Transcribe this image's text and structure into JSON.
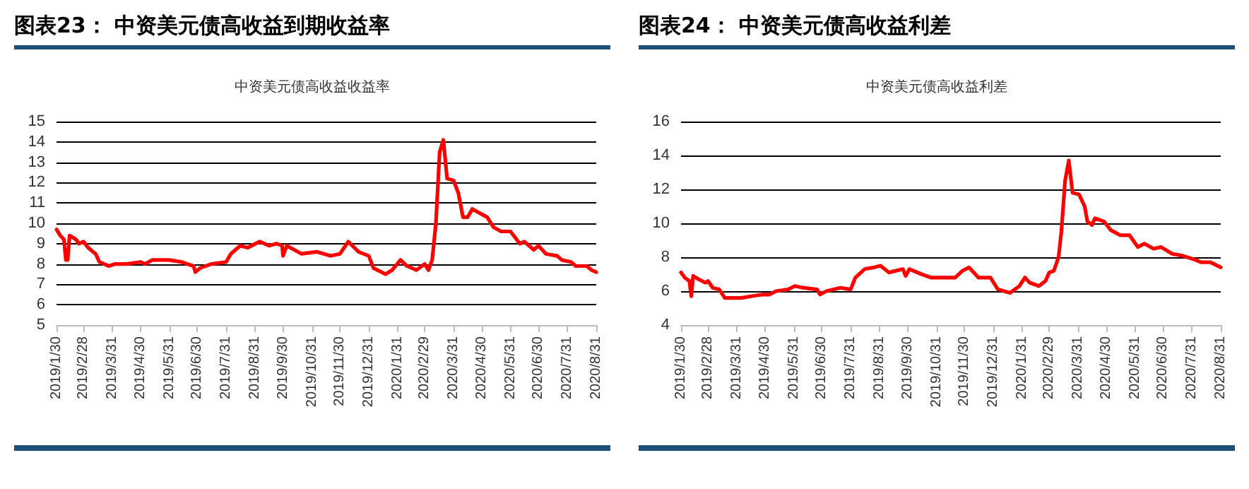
{
  "chart_data": [
    {
      "type": "line",
      "title": "图表23： 中资美元债高收益到期收益率",
      "subtitle": "中资美元债高收益收益率",
      "grid": "y",
      "marker": "none",
      "line_style": "solid",
      "ylim": [
        5,
        15
      ],
      "yticks": [
        5,
        6,
        7,
        8,
        9,
        10,
        11,
        12,
        13,
        14,
        15
      ],
      "xlim": [
        "2019-01-30",
        "2020-08-31"
      ],
      "xticks": [
        {
          "value": "2019-01-30",
          "label": "2019/1/30"
        },
        {
          "value": "2019-02-28",
          "label": "2019/2/28"
        },
        {
          "value": "2019-03-31",
          "label": "2019/3/31"
        },
        {
          "value": "2019-04-30",
          "label": "2019/4/30"
        },
        {
          "value": "2019-05-31",
          "label": "2019/5/31"
        },
        {
          "value": "2019-06-30",
          "label": "2019/6/30"
        },
        {
          "value": "2019-07-31",
          "label": "2019/7/31"
        },
        {
          "value": "2019-08-31",
          "label": "2019/8/31"
        },
        {
          "value": "2019-09-30",
          "label": "2019/9/30"
        },
        {
          "value": "2019-10-31",
          "label": "2019/10/31"
        },
        {
          "value": "2019-11-30",
          "label": "2019/11/30"
        },
        {
          "value": "2019-12-31",
          "label": "2019/12/31"
        },
        {
          "value": "2020-01-31",
          "label": "2020/1/31"
        },
        {
          "value": "2020-02-29",
          "label": "2020/2/29"
        },
        {
          "value": "2020-03-31",
          "label": "2020/3/31"
        },
        {
          "value": "2020-04-30",
          "label": "2020/4/30"
        },
        {
          "value": "2020-05-31",
          "label": "2020/5/31"
        },
        {
          "value": "2020-06-30",
          "label": "2020/6/30"
        },
        {
          "value": "2020-07-31",
          "label": "2020/7/31"
        },
        {
          "value": "2020-08-31",
          "label": "2020/8/31"
        }
      ],
      "series": [
        {
          "color": "#ff0000",
          "x": [
            "2019-01-30",
            "2019-02-03",
            "2019-02-07",
            "2019-02-09",
            "2019-02-11",
            "2019-02-13",
            "2019-02-20",
            "2019-02-23",
            "2019-02-28",
            "2019-03-05",
            "2019-03-10",
            "2019-03-13",
            "2019-03-17",
            "2019-03-27",
            "2019-04-03",
            "2019-04-15",
            "2019-04-30",
            "2019-05-05",
            "2019-05-13",
            "2019-05-31",
            "2019-06-13",
            "2019-06-26",
            "2019-06-28",
            "2019-07-03",
            "2019-07-15",
            "2019-07-31",
            "2019-08-05",
            "2019-08-15",
            "2019-08-23",
            "2019-09-05",
            "2019-09-15",
            "2019-09-23",
            "2019-09-29",
            "2019-09-30",
            "2019-10-04",
            "2019-10-20",
            "2019-11-05",
            "2019-11-20",
            "2019-11-30",
            "2019-12-09",
            "2019-12-20",
            "2019-12-31",
            "2020-01-05",
            "2020-01-18",
            "2020-01-25",
            "2020-02-03",
            "2020-02-10",
            "2020-02-20",
            "2020-02-29",
            "2020-03-04",
            "2020-03-08",
            "2020-03-12",
            "2020-03-16",
            "2020-03-20",
            "2020-03-24",
            "2020-03-31",
            "2020-04-05",
            "2020-04-10",
            "2020-04-15",
            "2020-04-20",
            "2020-05-06",
            "2020-05-13",
            "2020-05-21",
            "2020-05-31",
            "2020-06-10",
            "2020-06-15",
            "2020-06-25",
            "2020-06-30",
            "2020-07-08",
            "2020-07-20",
            "2020-07-25",
            "2020-08-04",
            "2020-08-09",
            "2020-08-21",
            "2020-08-26",
            "2020-08-31"
          ],
          "values": [
            9.7,
            9.4,
            9.2,
            8.2,
            8.2,
            9.4,
            9.2,
            9.0,
            9.1,
            8.8,
            8.6,
            8.5,
            8.1,
            7.9,
            8.0,
            8.0,
            8.1,
            8.0,
            8.2,
            8.2,
            8.1,
            7.9,
            7.6,
            7.8,
            8.0,
            8.1,
            8.5,
            8.9,
            8.8,
            9.1,
            8.9,
            9.0,
            8.9,
            8.4,
            8.9,
            8.5,
            8.6,
            8.4,
            8.5,
            9.1,
            8.6,
            8.4,
            7.8,
            7.5,
            7.7,
            8.2,
            7.9,
            7.7,
            8.0,
            7.7,
            8.2,
            10.0,
            13.5,
            14.1,
            12.2,
            12.1,
            11.5,
            10.3,
            10.3,
            10.7,
            10.3,
            9.8,
            9.6,
            9.6,
            9.0,
            9.1,
            8.7,
            8.9,
            8.5,
            8.4,
            8.2,
            8.1,
            7.9,
            7.9,
            7.7,
            7.6
          ]
        }
      ]
    },
    {
      "type": "line",
      "title": "图表24： 中资美元债高收益利差",
      "subtitle": "中资美元债高收益利差",
      "grid": "y",
      "marker": "none",
      "line_style": "solid",
      "ylim": [
        4,
        16
      ],
      "yticks": [
        4,
        6,
        8,
        10,
        12,
        14,
        16
      ],
      "xlim": [
        "2019-01-30",
        "2020-08-31"
      ],
      "xticks": [
        {
          "value": "2019-01-30",
          "label": "2019/1/30"
        },
        {
          "value": "2019-02-28",
          "label": "2019/2/28"
        },
        {
          "value": "2019-03-31",
          "label": "2019/3/31"
        },
        {
          "value": "2019-04-30",
          "label": "2019/4/30"
        },
        {
          "value": "2019-05-31",
          "label": "2019/5/31"
        },
        {
          "value": "2019-06-30",
          "label": "2019/6/30"
        },
        {
          "value": "2019-07-31",
          "label": "2019/7/31"
        },
        {
          "value": "2019-08-31",
          "label": "2019/8/31"
        },
        {
          "value": "2019-09-30",
          "label": "2019/9/30"
        },
        {
          "value": "2019-10-31",
          "label": "2019/10/31"
        },
        {
          "value": "2019-11-30",
          "label": "2019/11/30"
        },
        {
          "value": "2019-12-31",
          "label": "2019/12/31"
        },
        {
          "value": "2020-01-31",
          "label": "2020/1/31"
        },
        {
          "value": "2020-02-29",
          "label": "2020/2/29"
        },
        {
          "value": "2020-03-31",
          "label": "2020/3/31"
        },
        {
          "value": "2020-04-30",
          "label": "2020/4/30"
        },
        {
          "value": "2020-05-31",
          "label": "2020/5/31"
        },
        {
          "value": "2020-06-30",
          "label": "2020/6/30"
        },
        {
          "value": "2020-07-31",
          "label": "2020/7/31"
        },
        {
          "value": "2020-08-31",
          "label": "2020/8/31"
        }
      ],
      "series": [
        {
          "color": "#ff0000",
          "x": [
            "2019-01-30",
            "2019-02-03",
            "2019-02-08",
            "2019-02-10",
            "2019-02-12",
            "2019-02-18",
            "2019-02-25",
            "2019-02-28",
            "2019-03-05",
            "2019-03-12",
            "2019-03-18",
            "2019-03-25",
            "2019-04-05",
            "2019-04-15",
            "2019-04-28",
            "2019-05-05",
            "2019-05-12",
            "2019-05-25",
            "2019-06-01",
            "2019-06-10",
            "2019-06-25",
            "2019-06-28",
            "2019-07-05",
            "2019-07-20",
            "2019-07-31",
            "2019-08-05",
            "2019-08-15",
            "2019-08-25",
            "2019-09-01",
            "2019-09-10",
            "2019-09-25",
            "2019-09-28",
            "2019-10-02",
            "2019-10-15",
            "2019-10-25",
            "2019-11-05",
            "2019-11-20",
            "2019-11-28",
            "2019-12-05",
            "2019-12-15",
            "2019-12-28",
            "2020-01-05",
            "2020-01-18",
            "2020-01-28",
            "2020-02-03",
            "2020-02-08",
            "2020-02-18",
            "2020-02-25",
            "2020-02-29",
            "2020-03-05",
            "2020-03-10",
            "2020-03-13",
            "2020-03-17",
            "2020-03-21",
            "2020-03-25",
            "2020-04-01",
            "2020-04-07",
            "2020-04-10",
            "2020-04-15",
            "2020-04-18",
            "2020-04-28",
            "2020-05-05",
            "2020-05-15",
            "2020-05-25",
            "2020-06-03",
            "2020-06-10",
            "2020-06-20",
            "2020-06-28",
            "2020-07-10",
            "2020-07-20",
            "2020-08-01",
            "2020-08-10",
            "2020-08-20",
            "2020-08-31"
          ],
          "values": [
            7.1,
            6.8,
            6.6,
            5.7,
            6.9,
            6.7,
            6.5,
            6.6,
            6.2,
            6.1,
            5.6,
            5.6,
            5.6,
            5.7,
            5.8,
            5.8,
            6.0,
            6.1,
            6.3,
            6.2,
            6.1,
            5.8,
            6.0,
            6.2,
            6.1,
            6.8,
            7.3,
            7.4,
            7.5,
            7.1,
            7.3,
            6.9,
            7.3,
            7.0,
            6.8,
            6.8,
            6.8,
            7.2,
            7.4,
            6.8,
            6.8,
            6.1,
            5.9,
            6.3,
            6.8,
            6.5,
            6.3,
            6.6,
            7.1,
            7.2,
            8.0,
            9.5,
            12.5,
            13.7,
            11.8,
            11.7,
            11.0,
            10.1,
            9.9,
            10.3,
            10.1,
            9.6,
            9.3,
            9.3,
            8.6,
            8.8,
            8.5,
            8.6,
            8.2,
            8.1,
            7.9,
            7.7,
            7.7,
            7.4
          ]
        }
      ]
    }
  ]
}
